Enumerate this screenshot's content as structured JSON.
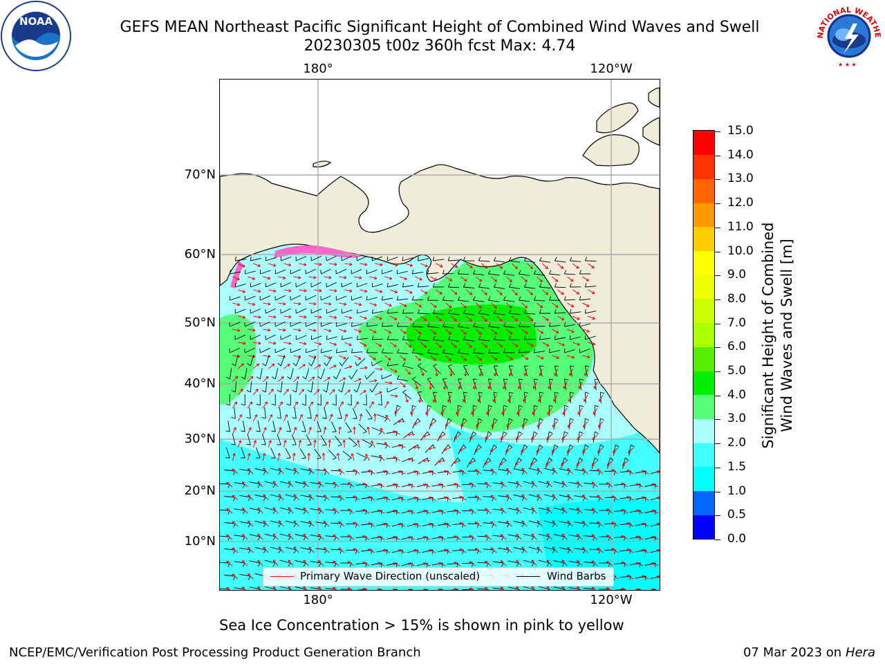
{
  "title": {
    "line1": "GEFS MEAN Northeast Pacific Significant Height of Combined Wind Waves and Swell",
    "line2": "20230305 t00z 360h fcst   Max: 4.74"
  },
  "map": {
    "lon_labels": [
      "180°",
      "120°W"
    ],
    "lat_labels": [
      "70°N",
      "60°N",
      "50°N",
      "40°N",
      "30°N",
      "20°N",
      "10°N"
    ],
    "land_color": "#efedd9",
    "ocean_no_data_color": "#ffffff"
  },
  "legend": {
    "wave_label": "Primary Wave Direction (unscaled)",
    "wind_label": "Wind Barbs",
    "wave_color": "#ff0000",
    "wind_color": "#000000"
  },
  "colorbar": {
    "title_line1": "Significant Height of Combined",
    "title_line2": "Wind Waves and Swell [m]",
    "ticks": [
      "15.0",
      "14.0",
      "13.0",
      "12.0",
      "11.0",
      "10.0",
      "9.0",
      "8.0",
      "7.0",
      "6.0",
      "5.0",
      "4.0",
      "3.0",
      "2.0",
      "1.5",
      "1.0",
      "0.5",
      "0.0"
    ],
    "colors_bottom_to_top": [
      "#0000ff",
      "#0066ff",
      "#00ffff",
      "#44ffff",
      "#aaffff",
      "#55ff77",
      "#00ee00",
      "#55ee00",
      "#aaff00",
      "#ccff00",
      "#eeff00",
      "#ffff00",
      "#ffcc00",
      "#ff9900",
      "#ff6600",
      "#ff3300",
      "#ff0000"
    ]
  },
  "caption": "Sea Ice Concentration > 15% is shown in pink to yellow",
  "footer": {
    "left": "NCEP/EMC/Verification Post Processing Product Generation Branch",
    "right_date": "07 Mar 2023 on",
    "right_machine": "Hera"
  },
  "logos": {
    "noaa": "NOAA",
    "nws_text": "NATIONAL WEATHER SERVICE"
  }
}
